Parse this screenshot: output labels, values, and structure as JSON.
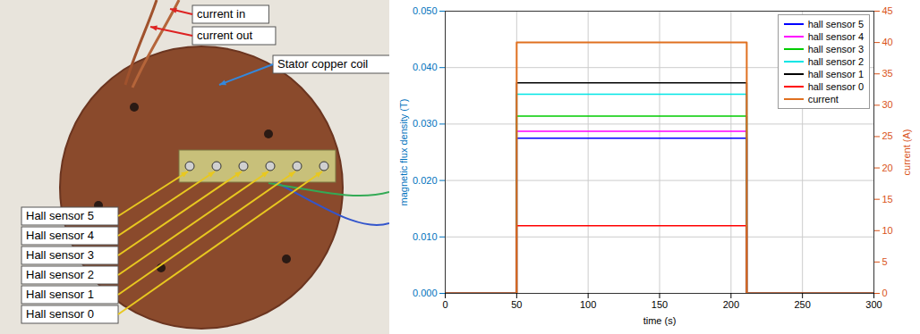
{
  "chart_data": {
    "type": "line",
    "x": [
      0,
      50,
      50,
      211,
      211,
      300
    ],
    "xlim": [
      0,
      300
    ],
    "xticks": [
      0,
      50,
      100,
      150,
      200,
      250,
      300
    ],
    "ylim": [
      0,
      0.05
    ],
    "yticks": [
      0,
      0.01,
      0.02,
      0.03,
      0.04,
      0.05
    ],
    "y2lim": [
      0,
      45
    ],
    "y2ticks": [
      0,
      5,
      10,
      15,
      20,
      25,
      30,
      35,
      40,
      45
    ],
    "xlabel": "time (s)",
    "ylabel": "magnetic flux density (T)",
    "y2label": "current (A)",
    "grid": true,
    "legend": "top-right",
    "series": [
      {
        "name": "hall sensor 5",
        "color": "#0000ff",
        "values": [
          0,
          0,
          0.0275,
          0.0275,
          0,
          0
        ]
      },
      {
        "name": "hall sensor 4",
        "color": "#ff00ff",
        "values": [
          0,
          0,
          0.0287,
          0.0287,
          0,
          0
        ]
      },
      {
        "name": "hall sensor 3",
        "color": "#00cc00",
        "values": [
          0,
          0,
          0.0314,
          0.0314,
          0,
          0
        ]
      },
      {
        "name": "hall sensor 2",
        "color": "#00e5e5",
        "values": [
          0,
          0,
          0.0353,
          0.0353,
          0,
          0
        ]
      },
      {
        "name": "hall sensor 1",
        "color": "#000000",
        "values": [
          0,
          0,
          0.0373,
          0.0373,
          0,
          0
        ]
      },
      {
        "name": "hall sensor 0",
        "color": "#ff0000",
        "values": [
          0,
          0,
          0.012,
          0.012,
          0,
          0
        ]
      },
      {
        "name": "current",
        "color": "#e07020",
        "axis": "y2",
        "values": [
          0,
          0,
          40,
          40,
          0,
          0
        ]
      }
    ]
  },
  "photo_labels": {
    "wires": [
      "current in",
      "current out"
    ],
    "coil": "Stator copper coil",
    "sensors": [
      "Hall sensor 5",
      "Hall sensor 4",
      "Hall sensor 3",
      "Hall sensor 2",
      "Hall sensor 1",
      "Hall sensor 0"
    ]
  }
}
